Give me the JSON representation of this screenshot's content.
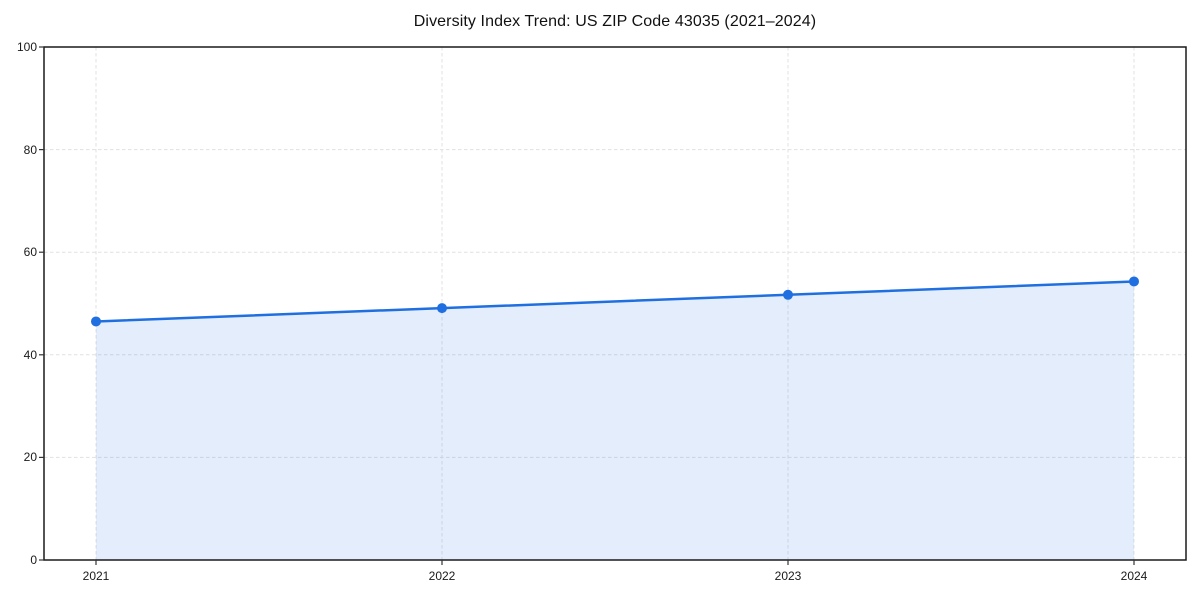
{
  "chart_data": {
    "type": "area",
    "title": "Diversity Index Trend: US ZIP Code 43035 (2021–2024)",
    "categories": [
      "2021",
      "2022",
      "2023",
      "2024"
    ],
    "values": [
      46.5,
      49.1,
      51.7,
      54.3
    ],
    "xlabel": "",
    "ylabel": "",
    "ylim": [
      0,
      100
    ],
    "yticks": [
      0,
      20,
      40,
      60,
      80,
      100
    ],
    "ytick_labels": [
      "0",
      "20",
      "40",
      "60",
      "80",
      "100"
    ],
    "grid": true,
    "grid_style": "dashed",
    "legend_position": "none",
    "marker": "circle",
    "colors": {
      "line": "#1f6fe0",
      "marker": "#1f6fe0",
      "fill": "#1f6fe0",
      "fill_opacity": 0.12,
      "grid": "#e1e1e1",
      "spine": "#1a1a1a",
      "tick": "#333333",
      "text": "#1a1a1a",
      "background": "#ffffff"
    }
  }
}
